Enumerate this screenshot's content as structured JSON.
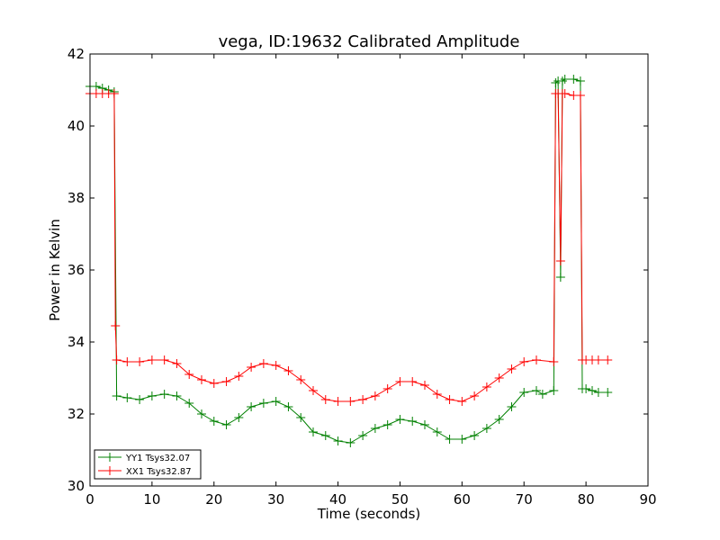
{
  "chart_data": {
    "type": "line",
    "title": "vega, ID:19632 Calibrated Amplitude",
    "xlabel": "Time (seconds)",
    "ylabel": "Power in Kelvin",
    "xlim": [
      0,
      90
    ],
    "ylim": [
      30,
      42
    ],
    "xticks": [
      0,
      10,
      20,
      30,
      40,
      50,
      60,
      70,
      80,
      90
    ],
    "yticks": [
      30,
      32,
      34,
      36,
      38,
      40,
      42
    ],
    "grid": false,
    "legend_position": "lower-left",
    "marker": "plus",
    "series": [
      {
        "name": "YY1 Tsys32.07",
        "color": "#008000",
        "x": [
          0,
          1,
          2,
          3,
          3.9,
          4.3,
          6,
          8,
          10,
          12,
          14,
          16,
          18,
          20,
          22,
          24,
          26,
          28,
          30,
          32,
          34,
          36,
          38,
          40,
          42,
          44,
          46,
          48,
          50,
          52,
          54,
          56,
          58,
          60,
          62,
          64,
          66,
          68,
          70,
          72,
          73,
          74.8,
          75.1,
          75.5,
          75.9,
          76.2,
          76.6,
          78,
          79.1,
          79.4,
          80,
          81,
          82,
          83.5
        ],
        "values": [
          41.1,
          41.1,
          41.05,
          41.0,
          40.95,
          32.5,
          32.45,
          32.4,
          32.5,
          32.55,
          32.5,
          32.3,
          32.0,
          31.8,
          31.7,
          31.9,
          32.2,
          32.3,
          32.35,
          32.2,
          31.9,
          31.5,
          31.4,
          31.25,
          31.2,
          31.4,
          31.6,
          31.7,
          31.85,
          31.8,
          31.7,
          31.5,
          31.3,
          31.3,
          31.4,
          31.6,
          31.85,
          32.2,
          32.6,
          32.65,
          32.55,
          32.65,
          41.2,
          41.25,
          35.8,
          41.25,
          41.3,
          41.3,
          41.25,
          32.7,
          32.7,
          32.65,
          32.6,
          32.6
        ]
      },
      {
        "name": "XX1 Tsys32.87",
        "color": "#ff0000",
        "x": [
          0,
          1,
          2,
          3,
          3.9,
          4.1,
          4.3,
          6,
          8,
          10,
          12,
          14,
          16,
          18,
          20,
          22,
          24,
          26,
          28,
          30,
          32,
          34,
          36,
          38,
          40,
          42,
          44,
          46,
          48,
          50,
          52,
          54,
          56,
          58,
          60,
          62,
          64,
          66,
          68,
          70,
          72,
          74.8,
          75.1,
          75.5,
          75.9,
          76.2,
          76.6,
          78,
          79.1,
          79.4,
          80,
          81,
          82,
          83.5
        ],
        "values": [
          40.9,
          40.9,
          40.9,
          40.9,
          40.9,
          34.45,
          33.5,
          33.45,
          33.45,
          33.5,
          33.5,
          33.4,
          33.1,
          32.95,
          32.85,
          32.9,
          33.05,
          33.3,
          33.4,
          33.35,
          33.2,
          32.95,
          32.65,
          32.4,
          32.35,
          32.35,
          32.4,
          32.5,
          32.7,
          32.9,
          32.9,
          32.8,
          32.55,
          32.4,
          32.35,
          32.5,
          32.75,
          33.0,
          33.25,
          33.45,
          33.5,
          33.45,
          40.9,
          40.9,
          36.25,
          40.9,
          40.9,
          40.85,
          40.85,
          33.5,
          33.5,
          33.5,
          33.5,
          33.5
        ]
      }
    ]
  }
}
